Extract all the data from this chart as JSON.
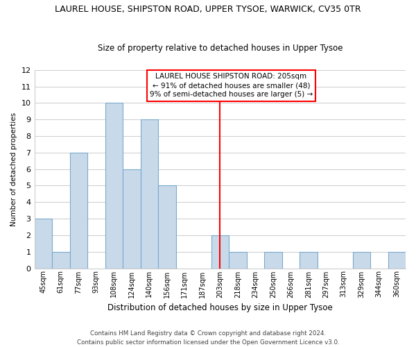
{
  "title": "LAUREL HOUSE, SHIPSTON ROAD, UPPER TYSOE, WARWICK, CV35 0TR",
  "subtitle": "Size of property relative to detached houses in Upper Tysoe",
  "xlabel": "Distribution of detached houses by size in Upper Tysoe",
  "ylabel": "Number of detached properties",
  "bins": [
    "45sqm",
    "61sqm",
    "77sqm",
    "93sqm",
    "108sqm",
    "124sqm",
    "140sqm",
    "156sqm",
    "171sqm",
    "187sqm",
    "203sqm",
    "218sqm",
    "234sqm",
    "250sqm",
    "266sqm",
    "281sqm",
    "297sqm",
    "313sqm",
    "329sqm",
    "344sqm",
    "360sqm"
  ],
  "counts": [
    3,
    1,
    7,
    0,
    10,
    6,
    9,
    5,
    0,
    0,
    2,
    1,
    0,
    1,
    0,
    1,
    0,
    0,
    1,
    0,
    1
  ],
  "bar_color": "#c8d9ea",
  "bar_edge_color": "#7aaaca",
  "reference_line_x": 10,
  "reference_line_label": "LAUREL HOUSE SHIPSTON ROAD: 205sqm",
  "annotation_line1": "← 91% of detached houses are smaller (48)",
  "annotation_line2": "9% of semi-detached houses are larger (5) →",
  "ylim": [
    0,
    12
  ],
  "yticks": [
    0,
    1,
    2,
    3,
    4,
    5,
    6,
    7,
    8,
    9,
    10,
    11,
    12
  ],
  "footer1": "Contains HM Land Registry data © Crown copyright and database right 2024.",
  "footer2": "Contains public sector information licensed under the Open Government Licence v3.0.",
  "background_color": "#ffffff",
  "grid_color": "#cccccc"
}
